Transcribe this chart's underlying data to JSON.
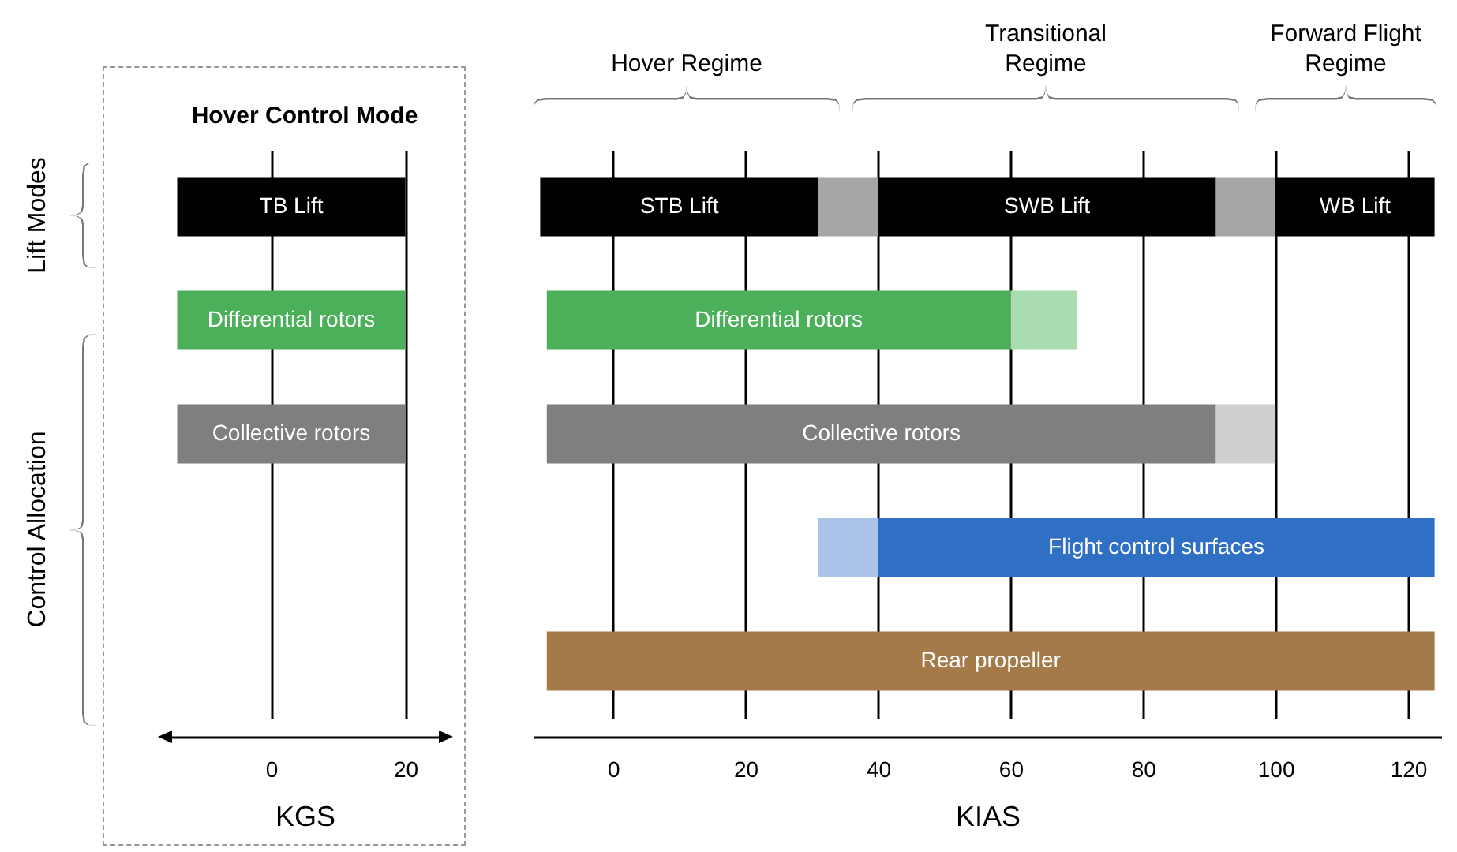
{
  "chart_data": [
    {
      "type": "bar",
      "orientation": "horizontal",
      "title": "Hover Control Mode",
      "xlabel": "KGS",
      "categories": [
        null,
        null,
        null,
        null,
        null
      ],
      "xlim": [
        -15,
        25
      ],
      "xticks": [
        0,
        20
      ],
      "grid": "x",
      "annotations": [
        "Lift Modes",
        "Control Allocation"
      ],
      "series": [
        {
          "name": "TB Lift",
          "color": "#000000",
          "base": [
            -14,
            null,
            null,
            null,
            null
          ],
          "values": [
            34,
            null,
            null,
            null,
            null
          ]
        },
        {
          "name": "Differential rotors",
          "color": "#4caf5a",
          "base": [
            null,
            -14,
            null,
            null,
            null
          ],
          "values": [
            null,
            34,
            null,
            null,
            null
          ]
        },
        {
          "name": "Collective rotors",
          "color": "#7f7f7f",
          "base": [
            null,
            null,
            -14,
            null,
            null
          ],
          "values": [
            null,
            null,
            34,
            null,
            null
          ]
        }
      ]
    },
    {
      "type": "bar",
      "orientation": "horizontal",
      "xlabel": "KIAS",
      "categories": [
        null,
        null,
        null,
        null,
        null
      ],
      "xlim": [
        -12,
        125
      ],
      "xticks": [
        0,
        20,
        40,
        60,
        80,
        100,
        120
      ],
      "grid": "x",
      "annotations": [
        "Hover Regime",
        "Transitional Regime",
        "Forward Flight Regime"
      ],
      "series": [
        {
          "name": "STB Lift",
          "color": "#000000",
          "base": [
            -11,
            null,
            null,
            null,
            null
          ],
          "values": [
            42,
            null,
            null,
            null,
            null
          ]
        },
        {
          "color": "#a6a6a6",
          "base": [
            31,
            null,
            null,
            null,
            null
          ],
          "values": [
            9,
            null,
            null,
            null,
            null
          ]
        },
        {
          "name": "SWB Lift",
          "color": "#000000",
          "base": [
            40,
            null,
            null,
            null,
            null
          ],
          "values": [
            51,
            null,
            null,
            null,
            null
          ]
        },
        {
          "color": "#a6a6a6",
          "base": [
            91,
            null,
            null,
            null,
            null
          ],
          "values": [
            9,
            null,
            null,
            null,
            null
          ]
        },
        {
          "name": "WB Lift",
          "color": "#000000",
          "base": [
            100,
            null,
            null,
            null,
            null
          ],
          "values": [
            24,
            null,
            null,
            null,
            null
          ]
        },
        {
          "name": "Differential rotors",
          "color": "#4caf5a",
          "base": [
            null,
            -10,
            null,
            null,
            null
          ],
          "values": [
            null,
            70,
            null,
            null,
            null
          ]
        },
        {
          "color": "#a9dcae",
          "base": [
            null,
            60,
            null,
            null,
            null
          ],
          "values": [
            null,
            10,
            null,
            null,
            null
          ]
        },
        {
          "name": "Collective rotors",
          "color": "#7f7f7f",
          "base": [
            null,
            null,
            -10,
            null,
            null
          ],
          "values": [
            null,
            null,
            101,
            null,
            null
          ]
        },
        {
          "color": "#cfcfcf",
          "base": [
            null,
            null,
            91,
            null,
            null
          ],
          "values": [
            null,
            null,
            9,
            null,
            null
          ]
        },
        {
          "color": "#a9c4e8",
          "base": [
            null,
            null,
            null,
            31,
            null
          ],
          "values": [
            null,
            null,
            null,
            9,
            null
          ]
        },
        {
          "name": "Flight control surfaces",
          "color": "#2f6fc4",
          "base": [
            null,
            null,
            null,
            40,
            null
          ],
          "values": [
            null,
            null,
            null,
            84,
            null
          ]
        },
        {
          "name": "Rear propeller",
          "color": "#a47a48",
          "base": [
            null,
            null,
            null,
            null,
            -10
          ],
          "values": [
            null,
            null,
            null,
            null,
            134
          ]
        }
      ]
    }
  ]
}
